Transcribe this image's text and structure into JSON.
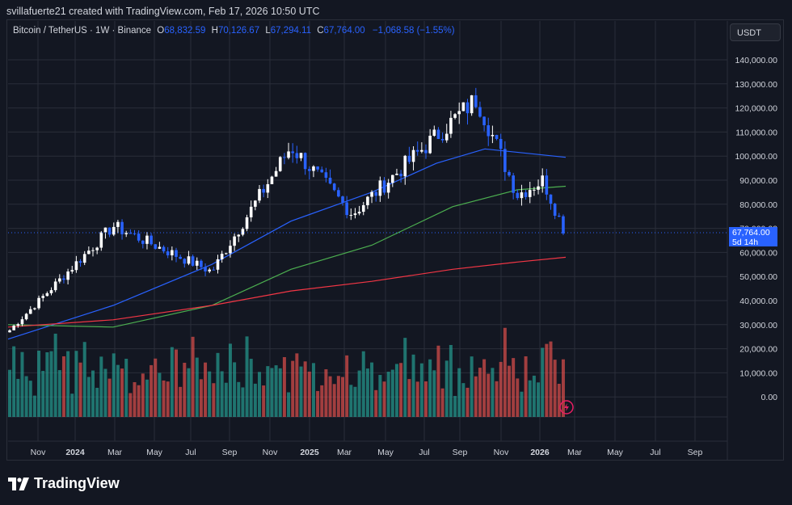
{
  "header": {
    "credit": "svillafuerte21 created with TradingView.com, Feb 17, 2026 10:50 UTC"
  },
  "legend": {
    "symbol": "Bitcoin / TetherUS · 1W · Binance",
    "open_label": "O",
    "open_value": "68,832.59",
    "high_label": "H",
    "high_value": "70,126.67",
    "low_label": "L",
    "low_value": "67,294.11",
    "close_label": "C",
    "close_value": "67,764.00",
    "change": "−1,068.58 (−1.55%)"
  },
  "currency": "USDT",
  "price_tag": {
    "price": "67,764.00",
    "countdown": "5d 14h"
  },
  "brand": {
    "name": "TradingView"
  },
  "colors": {
    "background": "#131722",
    "grid": "#2a2e39",
    "up_candle": "#ffffff",
    "down_candle": "#2962ff",
    "volume_up": "#26a69a",
    "volume_down": "#ef5350",
    "ma_blue": "#2962ff",
    "ma_green": "#4caf50",
    "ma_red": "#f23645",
    "price_tag": "#2962ff"
  },
  "icons": {
    "lightning": "lightning-bolt-icon",
    "logo": "tradingview-logo-icon"
  },
  "chart_data": {
    "type": "candlestick",
    "interval": "1W",
    "y_ticks": [
      "140,000.00",
      "130,000.00",
      "120,000.00",
      "110,000.00",
      "100,000.00",
      "90,000.00",
      "80,000.00",
      "70,000.00",
      "60,000.00",
      "50,000.00",
      "40,000.00",
      "30,000.00",
      "20,000.00",
      "10,000.00",
      "0.00"
    ],
    "x_ticks": [
      "Nov",
      "2024",
      "Mar",
      "May",
      "Jul",
      "Sep",
      "Nov",
      "2025",
      "Mar",
      "May",
      "Jul",
      "Sep",
      "Nov",
      "2026",
      "Mar",
      "May",
      "Jul",
      "Sep"
    ],
    "x_ticks_bold": [
      "2024",
      "2025",
      "2026"
    ],
    "price_ylim": [
      20000,
      145000
    ],
    "last_price": 67764,
    "key_points": [
      {
        "date": "2023-10",
        "price": 27000
      },
      {
        "date": "2024-03",
        "price": 71000
      },
      {
        "date": "2024-08",
        "price": 52000
      },
      {
        "date": "2024-12",
        "price": 104000
      },
      {
        "date": "2025-04",
        "price": 76000
      },
      {
        "date": "2025-08",
        "price": 124000
      },
      {
        "date": "2025-11",
        "price": 84000
      },
      {
        "date": "2026-02",
        "price": 67764
      }
    ],
    "series": [
      {
        "name": "",
        "kind": "ma",
        "color": "#2962ff",
        "end_value": 99500
      },
      {
        "name": "",
        "kind": "ma",
        "color": "#4caf50",
        "end_value": 87500
      },
      {
        "name": "",
        "kind": "ma",
        "color": "#f23645",
        "end_value": 58000
      }
    ]
  }
}
